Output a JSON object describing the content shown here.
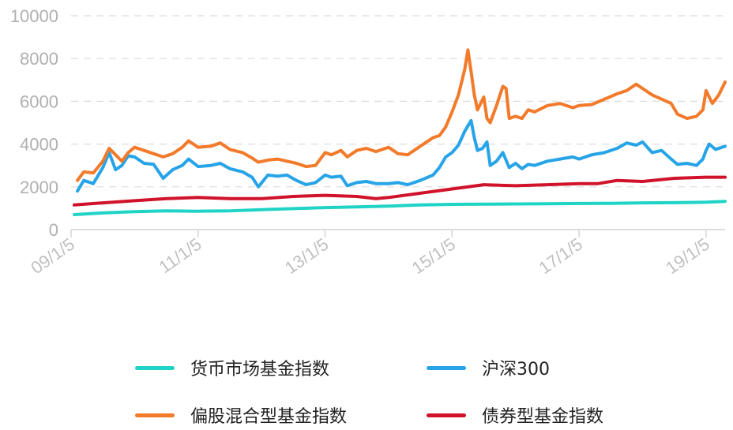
{
  "chart_data": {
    "type": "line",
    "title": "",
    "xlabel": "",
    "ylabel": "",
    "ylim": [
      0,
      10000
    ],
    "yticks": [
      "0",
      "2000",
      "4000",
      "6000",
      "8000",
      "10000"
    ],
    "xlim": [
      2009.0,
      2019.3
    ],
    "xticks": [
      {
        "x": 2009.0,
        "label": "09/1/5"
      },
      {
        "x": 2011.0,
        "label": "11/1/5"
      },
      {
        "x": 2013.0,
        "label": "13/1/5"
      },
      {
        "x": 2015.0,
        "label": "15/1/5"
      },
      {
        "x": 2017.0,
        "label": "17/1/5"
      },
      {
        "x": 2019.0,
        "label": "19/1/5"
      }
    ],
    "grid": true,
    "legend_position": "bottom",
    "series": [
      {
        "name": "货币市场基金指数",
        "color": "#1fd3c6",
        "points": [
          [
            2009.05,
            700
          ],
          [
            2009.5,
            780
          ],
          [
            2010,
            840
          ],
          [
            2010.5,
            880
          ],
          [
            2011,
            860
          ],
          [
            2011.5,
            880
          ],
          [
            2012,
            930
          ],
          [
            2012.5,
            980
          ],
          [
            2013,
            1030
          ],
          [
            2013.5,
            1060
          ],
          [
            2014,
            1100
          ],
          [
            2014.5,
            1150
          ],
          [
            2015,
            1180
          ],
          [
            2015.5,
            1190
          ],
          [
            2016,
            1200
          ],
          [
            2016.5,
            1210
          ],
          [
            2017,
            1220
          ],
          [
            2017.5,
            1230
          ],
          [
            2018,
            1250
          ],
          [
            2018.5,
            1260
          ],
          [
            2019,
            1280
          ],
          [
            2019.3,
            1320
          ]
        ]
      },
      {
        "name": "沪深300",
        "color": "#27a4e8",
        "points": [
          [
            2009.1,
            1800
          ],
          [
            2009.2,
            2300
          ],
          [
            2009.35,
            2150
          ],
          [
            2009.5,
            2900
          ],
          [
            2009.6,
            3600
          ],
          [
            2009.7,
            2800
          ],
          [
            2009.8,
            3000
          ],
          [
            2009.9,
            3450
          ],
          [
            2010.0,
            3400
          ],
          [
            2010.15,
            3100
          ],
          [
            2010.3,
            3050
          ],
          [
            2010.45,
            2400
          ],
          [
            2010.6,
            2800
          ],
          [
            2010.75,
            3000
          ],
          [
            2010.85,
            3300
          ],
          [
            2011.0,
            2950
          ],
          [
            2011.2,
            3000
          ],
          [
            2011.35,
            3100
          ],
          [
            2011.5,
            2850
          ],
          [
            2011.7,
            2700
          ],
          [
            2011.85,
            2450
          ],
          [
            2011.95,
            2000
          ],
          [
            2012.1,
            2550
          ],
          [
            2012.25,
            2500
          ],
          [
            2012.4,
            2550
          ],
          [
            2012.55,
            2300
          ],
          [
            2012.7,
            2100
          ],
          [
            2012.85,
            2200
          ],
          [
            2013.0,
            2550
          ],
          [
            2013.1,
            2450
          ],
          [
            2013.25,
            2500
          ],
          [
            2013.35,
            2050
          ],
          [
            2013.5,
            2200
          ],
          [
            2013.65,
            2250
          ],
          [
            2013.8,
            2150
          ],
          [
            2014.0,
            2150
          ],
          [
            2014.15,
            2200
          ],
          [
            2014.3,
            2100
          ],
          [
            2014.5,
            2300
          ],
          [
            2014.7,
            2550
          ],
          [
            2014.8,
            2900
          ],
          [
            2014.9,
            3400
          ],
          [
            2015.0,
            3600
          ],
          [
            2015.1,
            3950
          ],
          [
            2015.2,
            4600
          ],
          [
            2015.3,
            5100
          ],
          [
            2015.35,
            4300
          ],
          [
            2015.4,
            3700
          ],
          [
            2015.48,
            3800
          ],
          [
            2015.55,
            4100
          ],
          [
            2015.6,
            3000
          ],
          [
            2015.7,
            3200
          ],
          [
            2015.8,
            3600
          ],
          [
            2015.9,
            2900
          ],
          [
            2016.0,
            3100
          ],
          [
            2016.1,
            2850
          ],
          [
            2016.2,
            3050
          ],
          [
            2016.3,
            3000
          ],
          [
            2016.5,
            3200
          ],
          [
            2016.7,
            3300
          ],
          [
            2016.9,
            3400
          ],
          [
            2017.0,
            3300
          ],
          [
            2017.2,
            3500
          ],
          [
            2017.4,
            3600
          ],
          [
            2017.6,
            3800
          ],
          [
            2017.75,
            4050
          ],
          [
            2017.9,
            3950
          ],
          [
            2018.0,
            4100
          ],
          [
            2018.15,
            3600
          ],
          [
            2018.3,
            3700
          ],
          [
            2018.45,
            3300
          ],
          [
            2018.55,
            3050
          ],
          [
            2018.7,
            3100
          ],
          [
            2018.85,
            3000
          ],
          [
            2018.95,
            3300
          ],
          [
            2019.0,
            3700
          ],
          [
            2019.05,
            4000
          ],
          [
            2019.15,
            3750
          ],
          [
            2019.25,
            3850
          ],
          [
            2019.3,
            3900
          ]
        ]
      },
      {
        "name": "偏股混合型基金指数",
        "color": "#f27a2a",
        "points": [
          [
            2009.1,
            2300
          ],
          [
            2009.2,
            2700
          ],
          [
            2009.35,
            2650
          ],
          [
            2009.5,
            3200
          ],
          [
            2009.6,
            3800
          ],
          [
            2009.7,
            3500
          ],
          [
            2009.8,
            3200
          ],
          [
            2009.9,
            3600
          ],
          [
            2010.0,
            3850
          ],
          [
            2010.15,
            3700
          ],
          [
            2010.3,
            3550
          ],
          [
            2010.45,
            3400
          ],
          [
            2010.6,
            3550
          ],
          [
            2010.75,
            3850
          ],
          [
            2010.85,
            4150
          ],
          [
            2011.0,
            3850
          ],
          [
            2011.2,
            3900
          ],
          [
            2011.35,
            4050
          ],
          [
            2011.5,
            3750
          ],
          [
            2011.7,
            3600
          ],
          [
            2011.85,
            3350
          ],
          [
            2011.95,
            3150
          ],
          [
            2012.1,
            3250
          ],
          [
            2012.25,
            3300
          ],
          [
            2012.4,
            3200
          ],
          [
            2012.55,
            3100
          ],
          [
            2012.7,
            2950
          ],
          [
            2012.85,
            3000
          ],
          [
            2013.0,
            3600
          ],
          [
            2013.1,
            3500
          ],
          [
            2013.25,
            3700
          ],
          [
            2013.35,
            3400
          ],
          [
            2013.5,
            3700
          ],
          [
            2013.65,
            3800
          ],
          [
            2013.8,
            3650
          ],
          [
            2014.0,
            3850
          ],
          [
            2014.15,
            3550
          ],
          [
            2014.3,
            3500
          ],
          [
            2014.5,
            3900
          ],
          [
            2014.7,
            4300
          ],
          [
            2014.8,
            4400
          ],
          [
            2014.9,
            4800
          ],
          [
            2015.0,
            5500
          ],
          [
            2015.1,
            6300
          ],
          [
            2015.2,
            7500
          ],
          [
            2015.25,
            8400
          ],
          [
            2015.3,
            7400
          ],
          [
            2015.35,
            6300
          ],
          [
            2015.4,
            5600
          ],
          [
            2015.5,
            6200
          ],
          [
            2015.55,
            5200
          ],
          [
            2015.6,
            5000
          ],
          [
            2015.7,
            5800
          ],
          [
            2015.8,
            6700
          ],
          [
            2015.85,
            6600
          ],
          [
            2015.9,
            5200
          ],
          [
            2016.0,
            5300
          ],
          [
            2016.1,
            5200
          ],
          [
            2016.2,
            5600
          ],
          [
            2016.3,
            5500
          ],
          [
            2016.5,
            5800
          ],
          [
            2016.7,
            5900
          ],
          [
            2016.9,
            5700
          ],
          [
            2017.0,
            5800
          ],
          [
            2017.2,
            5850
          ],
          [
            2017.4,
            6100
          ],
          [
            2017.6,
            6350
          ],
          [
            2017.75,
            6500
          ],
          [
            2017.9,
            6800
          ],
          [
            2018.0,
            6600
          ],
          [
            2018.15,
            6300
          ],
          [
            2018.3,
            6100
          ],
          [
            2018.45,
            5900
          ],
          [
            2018.55,
            5400
          ],
          [
            2018.7,
            5200
          ],
          [
            2018.85,
            5300
          ],
          [
            2018.95,
            5600
          ],
          [
            2019.0,
            6500
          ],
          [
            2019.1,
            5900
          ],
          [
            2019.2,
            6300
          ],
          [
            2019.3,
            6900
          ]
        ]
      },
      {
        "name": "债券型基金指数",
        "color": "#d0122a",
        "points": [
          [
            2009.05,
            1150
          ],
          [
            2009.5,
            1250
          ],
          [
            2010,
            1350
          ],
          [
            2010.5,
            1450
          ],
          [
            2011,
            1500
          ],
          [
            2011.5,
            1450
          ],
          [
            2012,
            1450
          ],
          [
            2012.5,
            1550
          ],
          [
            2013,
            1600
          ],
          [
            2013.5,
            1550
          ],
          [
            2013.8,
            1450
          ],
          [
            2014,
            1500
          ],
          [
            2014.5,
            1700
          ],
          [
            2015,
            1900
          ],
          [
            2015.5,
            2100
          ],
          [
            2016,
            2050
          ],
          [
            2016.5,
            2100
          ],
          [
            2017,
            2150
          ],
          [
            2017.3,
            2150
          ],
          [
            2017.6,
            2300
          ],
          [
            2018,
            2250
          ],
          [
            2018.5,
            2400
          ],
          [
            2019,
            2450
          ],
          [
            2019.3,
            2450
          ]
        ]
      }
    ]
  }
}
